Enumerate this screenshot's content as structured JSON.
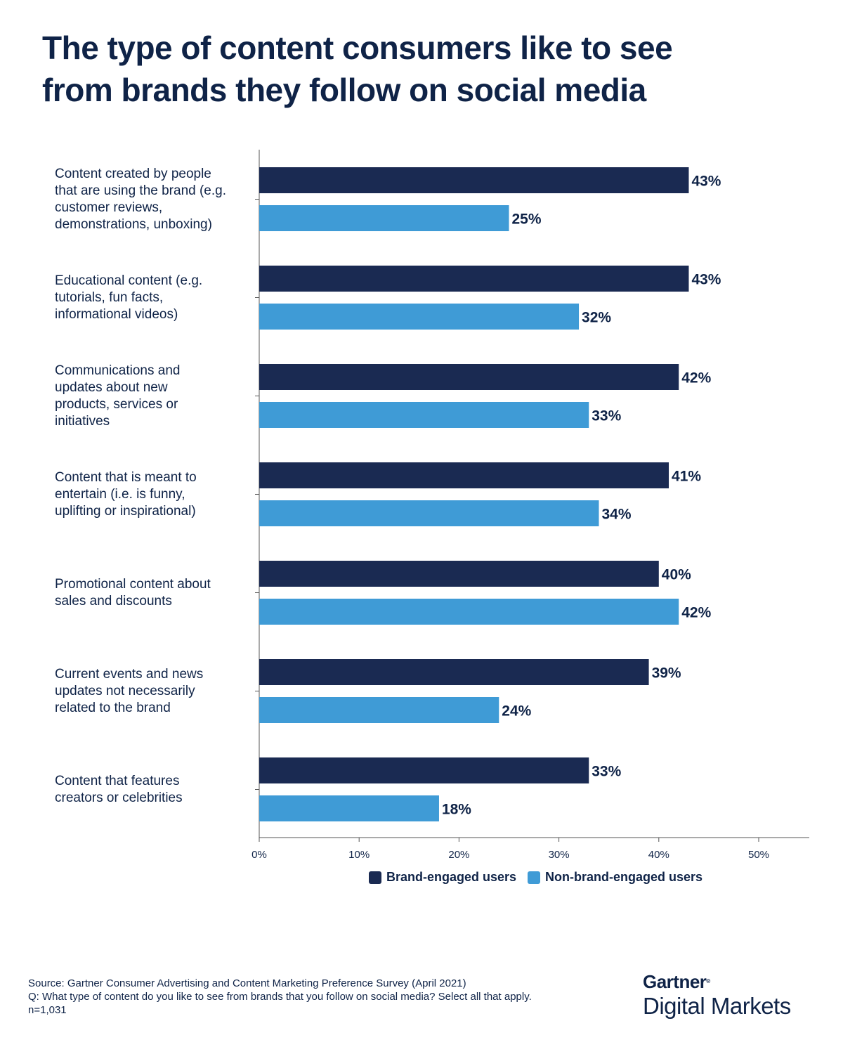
{
  "title_line1": "The type of content consumers like to see",
  "title_line2": "from brands they follow on social media",
  "chart_data": {
    "type": "bar",
    "orientation": "horizontal",
    "categories": [
      [
        "Content created by people",
        "that are using the brand (e.g.",
        "customer reviews,",
        "demonstrations, unboxing)"
      ],
      [
        "Educational content (e.g.",
        "tutorials, fun facts,",
        "informational videos)"
      ],
      [
        "Communications and",
        "updates about new",
        "products, services or",
        "initiatives"
      ],
      [
        "Content that is meant to",
        "entertain (i.e. is funny,",
        "uplifting or inspirational)"
      ],
      [
        "Promotional content about",
        "sales and discounts"
      ],
      [
        "Current events and news",
        "updates not necessarily",
        "related to the brand"
      ],
      [
        "Content that features",
        "creators or celebrities"
      ]
    ],
    "series": [
      {
        "name": "Brand-engaged users",
        "color": "#1a2a52",
        "values": [
          43,
          43,
          42,
          41,
          40,
          39,
          33
        ],
        "labels": [
          "43%",
          "43%",
          "42%",
          "41%",
          "40%",
          "39%",
          "33%"
        ]
      },
      {
        "name": "Non-brand-engaged users",
        "color": "#3f9bd6",
        "values": [
          25,
          32,
          33,
          34,
          42,
          24,
          18
        ],
        "labels": [
          "25%",
          "32%",
          "33%",
          "34%",
          "42%",
          "24%",
          "18%"
        ]
      }
    ],
    "xlim": [
      0,
      55
    ],
    "ticks": [
      0,
      10,
      20,
      30,
      40,
      50
    ],
    "tick_labels": [
      "0%",
      "10%",
      "20%",
      "30%",
      "40%",
      "50%"
    ],
    "legend_position": "bottom"
  },
  "legend": {
    "brand_label": "Brand-engaged users",
    "brand_color": "#1a2a52",
    "nonbrand_label": "Non-brand-engaged users",
    "nonbrand_color": "#3f9bd6"
  },
  "footer": {
    "source": "Source: Gartner Consumer Advertising and Content Marketing Preference Survey (April 2021)",
    "question": "Q: What type of content do you like to see from brands that you follow on social media? Select all that apply.",
    "n": "n=1,031"
  },
  "logo": {
    "top": "Gartner",
    "bottom": "Digital Markets"
  }
}
